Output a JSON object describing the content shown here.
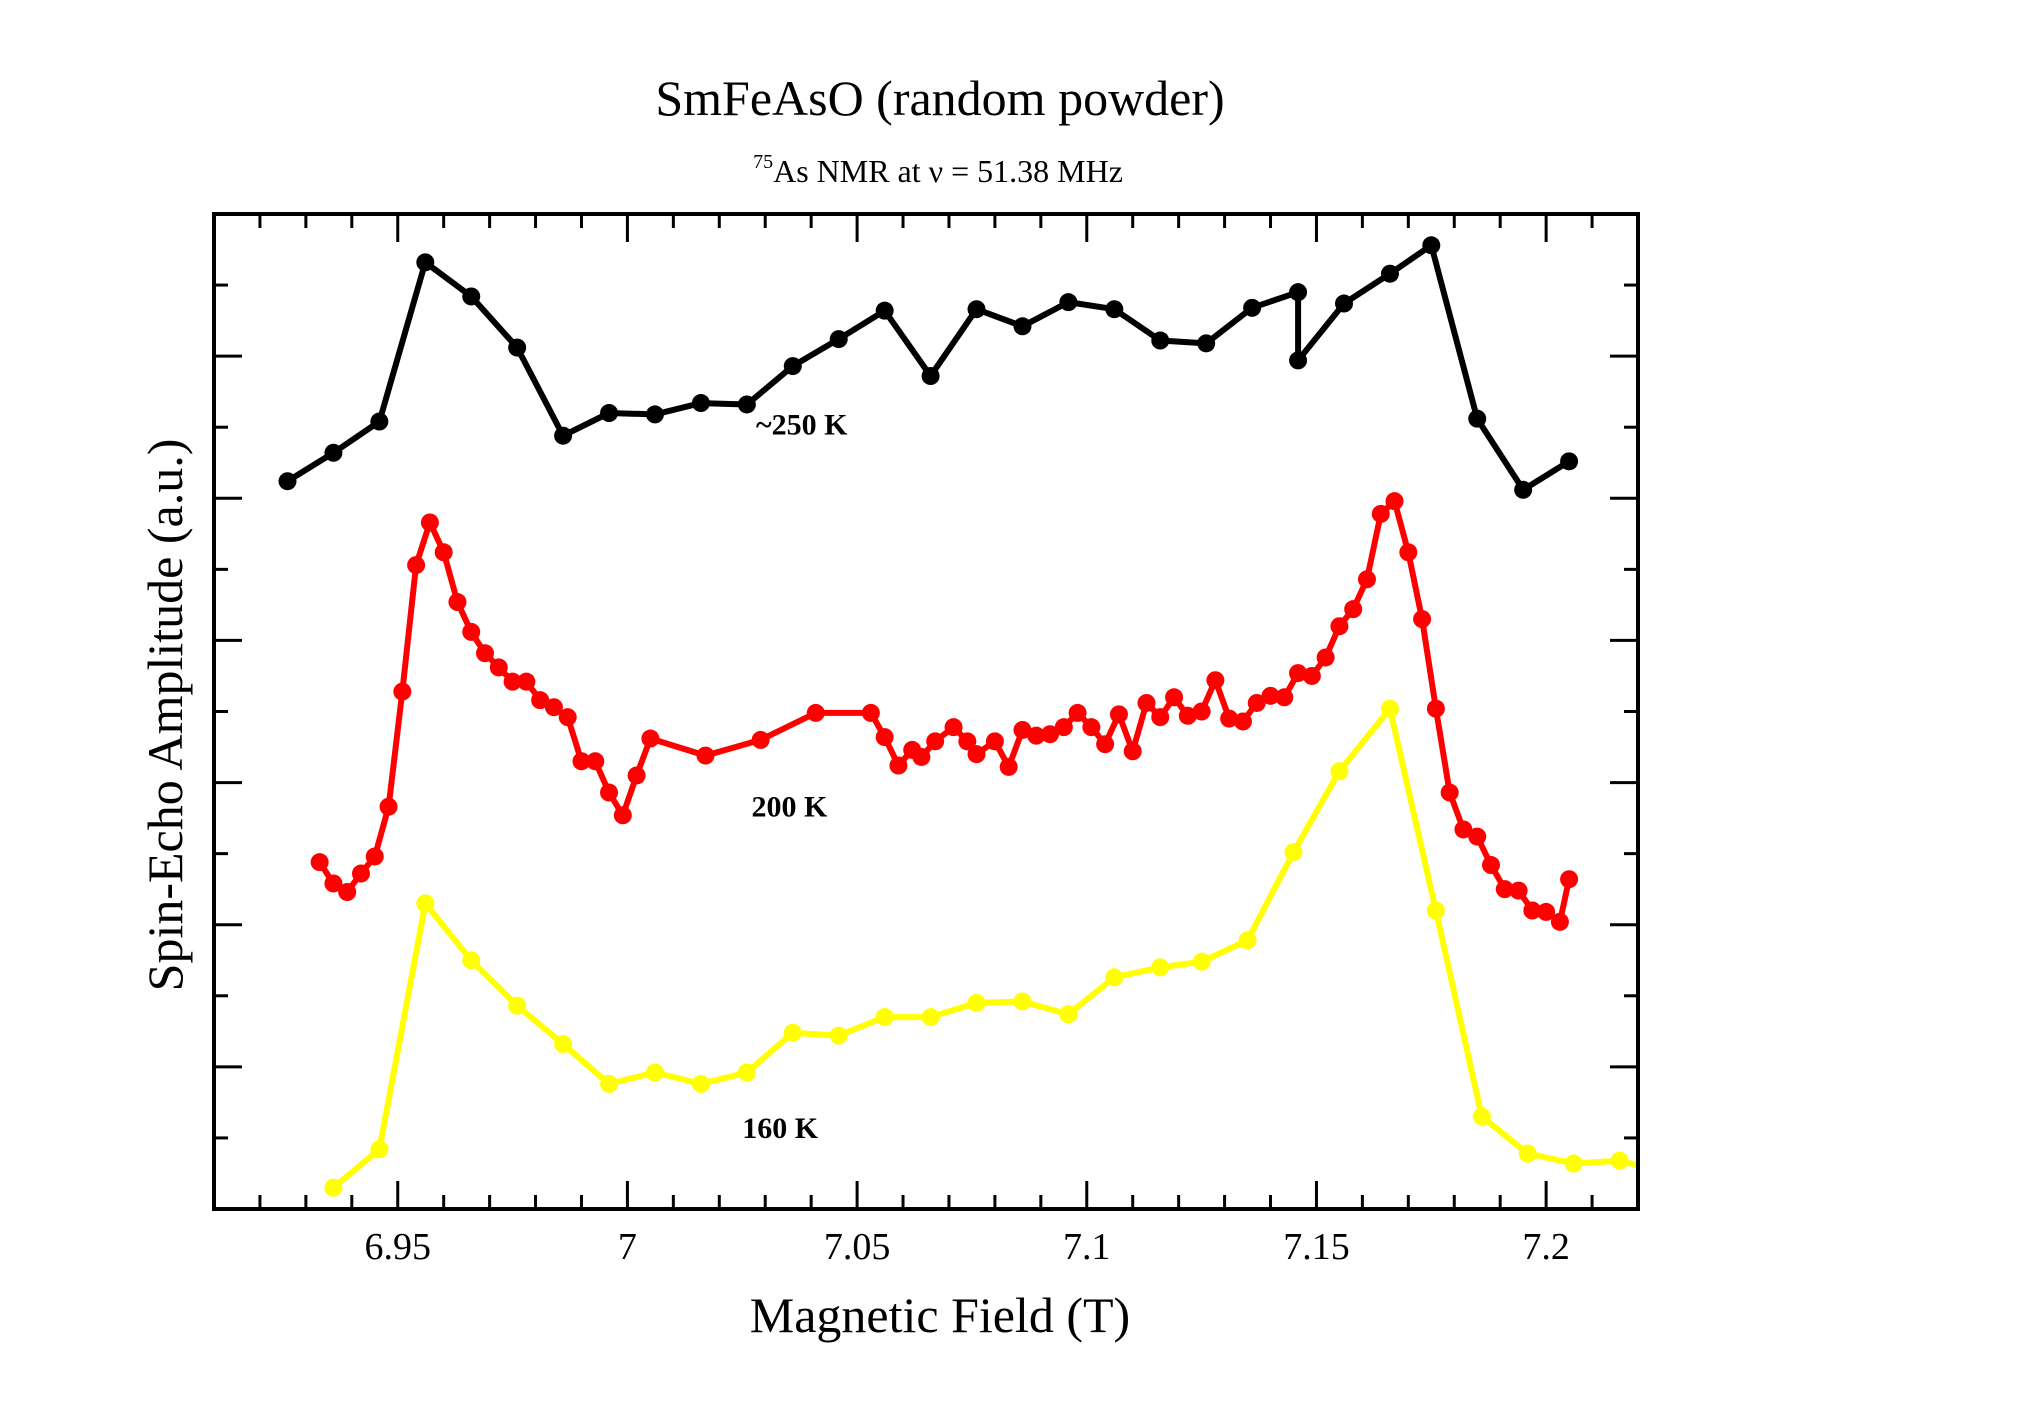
{
  "chart_data": {
    "type": "line",
    "title": "SmFeAsO (random powder)",
    "subtitle": {
      "isotope_superscript": "75",
      "text": "As NMR at ν = 51.38 MHz"
    },
    "xlabel": "Magnetic Field (T)",
    "ylabel": "Spin-Echo Amplitude (a.u.)",
    "xlim": [
      6.91,
      7.22
    ],
    "ylim": [
      0,
      7
    ],
    "x_major_ticks": [
      6.95,
      7.0,
      7.05,
      7.1,
      7.15,
      7.2
    ],
    "x_tick_labels": [
      "6.95",
      "7",
      "7.05",
      "7.1",
      "7.15",
      "7.2"
    ],
    "x_minor_step": 0.01,
    "y_major_step": 1,
    "y_minor_step": 0.5,
    "y_tick_labels_shown": false,
    "grid": false,
    "legend": "none",
    "series": [
      {
        "name": "~250 K",
        "color": "#000000",
        "label": {
          "text": "~250 K",
          "x": 7.028,
          "y": 5.45
        },
        "x": [
          6.926,
          6.936,
          6.946,
          6.956,
          6.966,
          6.976,
          6.986,
          6.996,
          7.006,
          7.016,
          7.026,
          7.036,
          7.046,
          7.056,
          7.066,
          7.076,
          7.086,
          7.096,
          7.106,
          7.116,
          7.126,
          7.136,
          7.146,
          7.146,
          7.156,
          7.166,
          7.175,
          7.185,
          7.195,
          7.205
        ],
        "y": [
          5.12,
          5.32,
          5.54,
          6.66,
          6.42,
          6.06,
          5.44,
          5.6,
          5.59,
          5.67,
          5.66,
          5.93,
          6.12,
          6.32,
          5.86,
          6.33,
          6.21,
          6.38,
          6.33,
          6.11,
          6.09,
          6.34,
          6.45,
          5.97,
          6.37,
          6.58,
          6.78,
          5.56,
          5.06,
          5.26
        ]
      },
      {
        "name": "200 K",
        "color": "#ff0000",
        "label": {
          "text": "200 K",
          "x": 7.027,
          "y": 2.76
        },
        "x": [
          6.933,
          6.936,
          6.939,
          6.942,
          6.945,
          6.948,
          6.951,
          6.954,
          6.957,
          6.96,
          6.963,
          6.966,
          6.969,
          6.972,
          6.975,
          6.978,
          6.981,
          6.984,
          6.987,
          6.99,
          6.993,
          6.996,
          6.999,
          7.002,
          7.005,
          7.017,
          7.029,
          7.041,
          7.053,
          7.056,
          7.059,
          7.062,
          7.064,
          7.067,
          7.071,
          7.074,
          7.076,
          7.08,
          7.083,
          7.086,
          7.089,
          7.092,
          7.095,
          7.098,
          7.101,
          7.104,
          7.107,
          7.11,
          7.113,
          7.116,
          7.119,
          7.122,
          7.125,
          7.128,
          7.131,
          7.134,
          7.137,
          7.14,
          7.143,
          7.146,
          7.149,
          7.152,
          7.155,
          7.158,
          7.161,
          7.164,
          7.167,
          7.17,
          7.173,
          7.176,
          7.179,
          7.182,
          7.185,
          7.188,
          7.191,
          7.194,
          7.197,
          7.2,
          7.203,
          7.205
        ],
        "y": [
          2.44,
          2.29,
          2.23,
          2.36,
          2.48,
          2.83,
          3.64,
          4.53,
          4.83,
          4.62,
          4.27,
          4.06,
          3.91,
          3.81,
          3.71,
          3.71,
          3.58,
          3.53,
          3.46,
          3.15,
          3.15,
          2.93,
          2.77,
          3.05,
          3.31,
          3.19,
          3.3,
          3.49,
          3.49,
          3.32,
          3.12,
          3.23,
          3.18,
          3.29,
          3.39,
          3.29,
          3.2,
          3.29,
          3.11,
          3.37,
          3.33,
          3.34,
          3.39,
          3.49,
          3.39,
          3.27,
          3.48,
          3.22,
          3.56,
          3.46,
          3.6,
          3.47,
          3.5,
          3.72,
          3.45,
          3.43,
          3.56,
          3.61,
          3.6,
          3.77,
          3.75,
          3.88,
          4.1,
          4.22,
          4.43,
          4.89,
          4.98,
          4.62,
          4.15,
          3.52,
          2.93,
          2.67,
          2.62,
          2.42,
          2.25,
          2.24,
          2.1,
          2.09,
          2.02,
          2.32
        ]
      },
      {
        "name": "160 K",
        "color": "#ffff00",
        "label": {
          "text": "160 K",
          "x": 7.025,
          "y": 0.5
        },
        "x": [
          6.936,
          6.946,
          6.956,
          6.966,
          6.976,
          6.986,
          6.996,
          7.006,
          7.016,
          7.026,
          7.036,
          7.046,
          7.056,
          7.066,
          7.076,
          7.086,
          7.096,
          7.106,
          7.116,
          7.125,
          7.135,
          7.145,
          7.155,
          7.166,
          7.176,
          7.186,
          7.196,
          7.206,
          7.216,
          7.226
        ],
        "y": [
          0.15,
          0.42,
          2.15,
          1.75,
          1.43,
          1.16,
          0.88,
          0.96,
          0.88,
          0.96,
          1.24,
          1.22,
          1.35,
          1.35,
          1.45,
          1.46,
          1.37,
          1.63,
          1.7,
          1.74,
          1.89,
          2.51,
          3.08,
          3.52,
          2.1,
          0.65,
          0.39,
          0.32,
          0.34,
          0.26
        ]
      }
    ]
  }
}
